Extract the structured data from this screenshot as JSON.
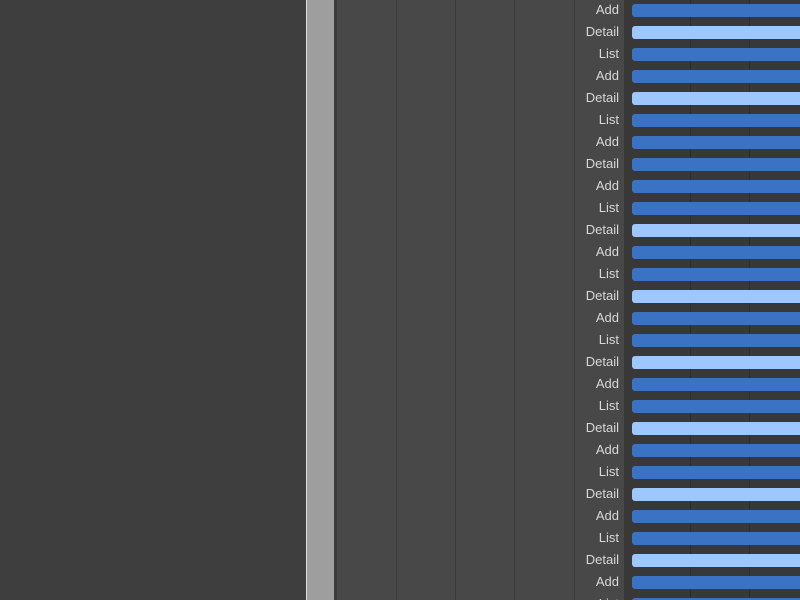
{
  "colors": {
    "bar_default": "#3a72c4",
    "bar_detail": "#9ec6ff",
    "label_text": "#d8d8d8",
    "left_pane_bg": "#3e3e3e",
    "column_bg": "#484848",
    "timeline_bg": "#383838"
  },
  "rows": [
    {
      "label": "Add",
      "variant": "default"
    },
    {
      "label": "Detail",
      "variant": "detail"
    },
    {
      "label": "List",
      "variant": "default"
    },
    {
      "label": "Add",
      "variant": "default"
    },
    {
      "label": "Detail",
      "variant": "detail"
    },
    {
      "label": "List",
      "variant": "default"
    },
    {
      "label": "Add",
      "variant": "default"
    },
    {
      "label": "Detail",
      "variant": "default"
    },
    {
      "label": "Add",
      "variant": "default"
    },
    {
      "label": "List",
      "variant": "default"
    },
    {
      "label": "Detail",
      "variant": "detail"
    },
    {
      "label": "Add",
      "variant": "default"
    },
    {
      "label": "List",
      "variant": "default"
    },
    {
      "label": "Detail",
      "variant": "detail"
    },
    {
      "label": "Add",
      "variant": "default"
    },
    {
      "label": "List",
      "variant": "default"
    },
    {
      "label": "Detail",
      "variant": "detail"
    },
    {
      "label": "Add",
      "variant": "default"
    },
    {
      "label": "List",
      "variant": "default"
    },
    {
      "label": "Detail",
      "variant": "detail"
    },
    {
      "label": "Add",
      "variant": "default"
    },
    {
      "label": "List",
      "variant": "default"
    },
    {
      "label": "Detail",
      "variant": "detail"
    },
    {
      "label": "Add",
      "variant": "default"
    },
    {
      "label": "List",
      "variant": "default"
    },
    {
      "label": "Detail",
      "variant": "detail"
    },
    {
      "label": "Add",
      "variant": "default"
    },
    {
      "label": "List",
      "variant": "default"
    }
  ]
}
